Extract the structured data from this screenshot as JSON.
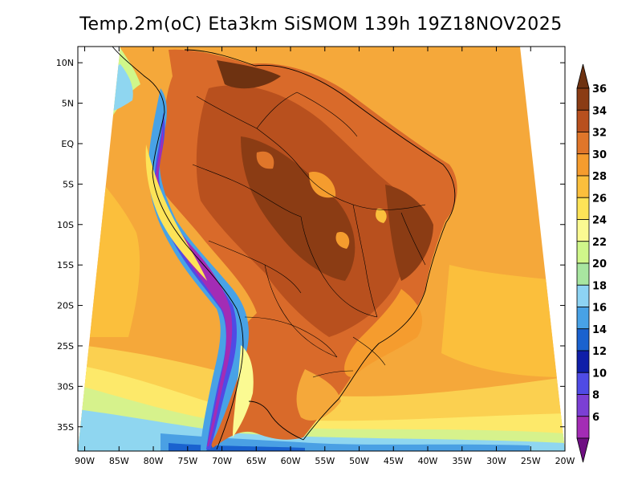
{
  "title": "Temp.2m(oC) Eta3km SiSMOM 139h 19Z18NOV2025",
  "lat_labels": [
    "10N",
    "5N",
    "EQ",
    "5S",
    "10S",
    "15S",
    "20S",
    "25S",
    "30S",
    "35S"
  ],
  "lat_values": [
    10,
    5,
    0,
    -5,
    -10,
    -15,
    -20,
    -25,
    -30,
    -35
  ],
  "lon_labels": [
    "90W",
    "85W",
    "80W",
    "75W",
    "70W",
    "65W",
    "60W",
    "55W",
    "50W",
    "45W",
    "40W",
    "35W",
    "30W",
    "25W",
    "20W"
  ],
  "lon_values": [
    -90,
    -85,
    -80,
    -75,
    -70,
    -65,
    -60,
    -55,
    -50,
    -45,
    -40,
    -35,
    -30,
    -25,
    -20
  ],
  "colorbar": {
    "labels": [
      "36",
      "34",
      "32",
      "30",
      "28",
      "26",
      "24",
      "22",
      "20",
      "18",
      "16",
      "14",
      "12",
      "10",
      "8",
      "6"
    ],
    "values": [
      36,
      34,
      32,
      30,
      28,
      26,
      24,
      22,
      20,
      18,
      16,
      14,
      12,
      10,
      8,
      6
    ],
    "colors": [
      "#6e3211",
      "#8b3c14",
      "#b8501e",
      "#e0762a",
      "#f59c2e",
      "#fbbf3c",
      "#fde357",
      "#fbfa92",
      "#d0f78a",
      "#a8e6a0",
      "#8dd3f3",
      "#48a2e6",
      "#1a62cf",
      "#0f1ea8",
      "#4f4be5",
      "#7b3fd4",
      "#a32cb5",
      "#6f0f82"
    ]
  },
  "domain": {
    "lon_min": -91,
    "lon_max": -20,
    "lat_min": -38,
    "lat_max": 12
  }
}
